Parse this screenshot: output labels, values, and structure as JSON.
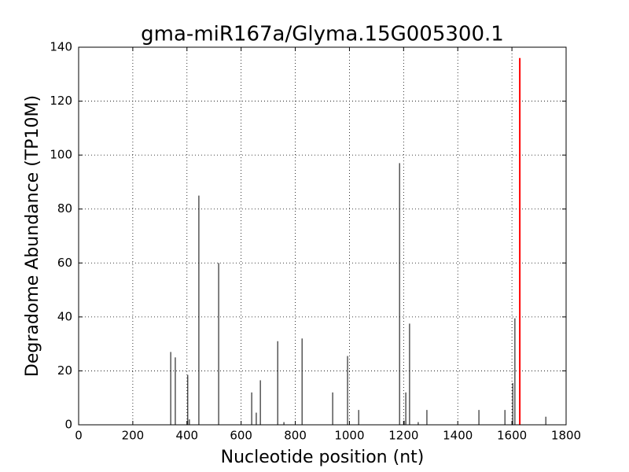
{
  "chart_data": {
    "type": "stem",
    "title": "gma-miR167a/Glyma.15G005300.1",
    "xlabel": "Nucleotide position (nt)",
    "ylabel": "Degradome Abundance (TP10M)",
    "xlim": [
      0,
      1800
    ],
    "xticks": [
      0,
      200,
      400,
      600,
      800,
      1000,
      1200,
      1400,
      1600,
      1800
    ],
    "ylim": [
      0,
      140
    ],
    "yticks": [
      0,
      20,
      40,
      60,
      80,
      100,
      120,
      140
    ],
    "grid": true,
    "series": [
      {
        "color": "#000000",
        "linewidth": 1,
        "x": [
          340,
          357,
          403,
          409,
          444,
          517,
          639,
          656,
          671,
          735,
          758,
          825,
          938,
          993,
          1034,
          1185,
          1202,
          1208,
          1222,
          1254,
          1286,
          1478,
          1574,
          1603,
          1611,
          1725
        ],
        "values": [
          27,
          25,
          18.5,
          2,
          85,
          60,
          12,
          4.5,
          16.5,
          31,
          1,
          32,
          12,
          25.5,
          5.5,
          97,
          1.5,
          12,
          37.5,
          1,
          5.5,
          5.5,
          5.5,
          15.5,
          39.5,
          3
        ]
      },
      {
        "color": "#ff0000",
        "linewidth": 2,
        "x": [
          1629
        ],
        "values": [
          136
        ]
      }
    ]
  }
}
